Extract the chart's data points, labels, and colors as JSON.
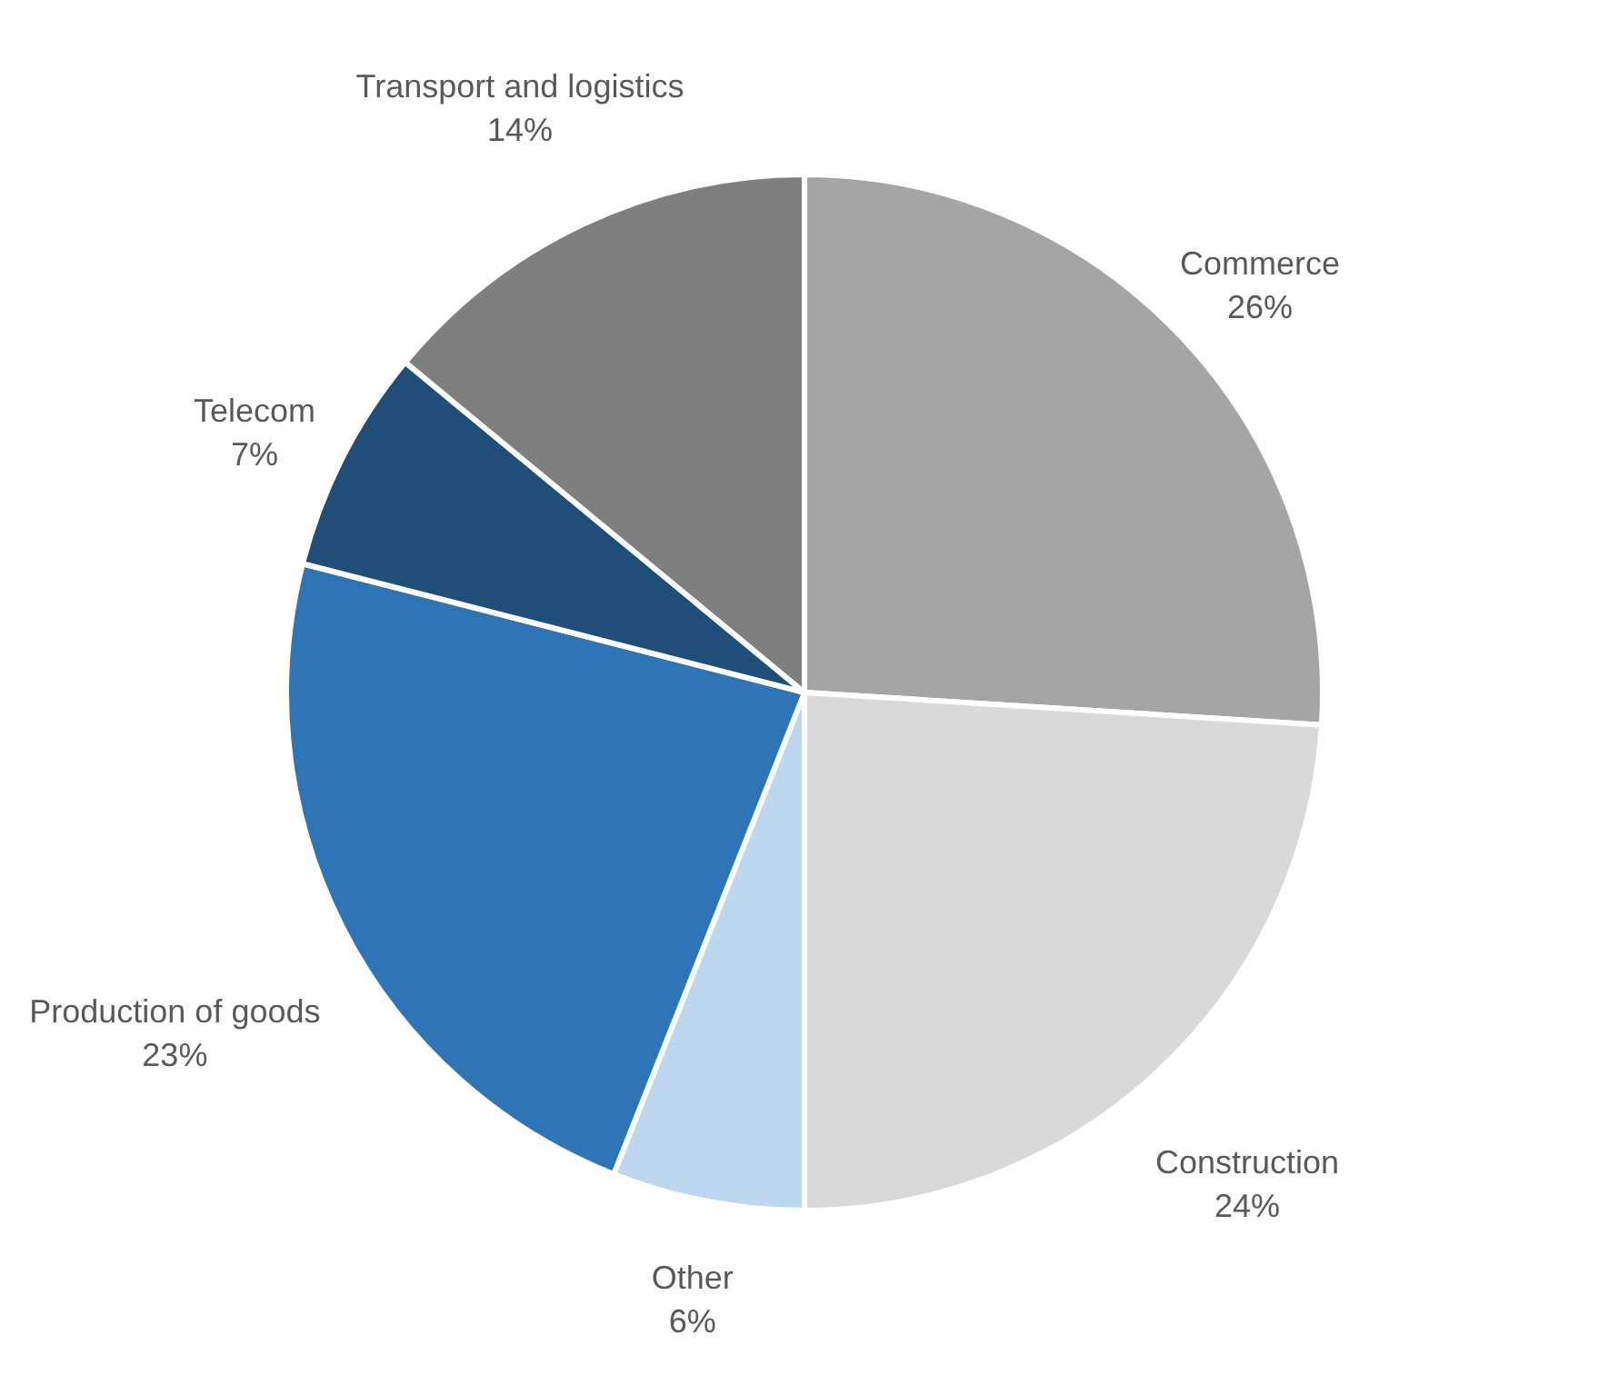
{
  "chart_data": {
    "type": "pie",
    "categories": [
      "Commerce",
      "Construction",
      "Other",
      "Production of goods",
      "Telecom",
      "Transport and logistics"
    ],
    "values": [
      26,
      24,
      6,
      23,
      7,
      14
    ],
    "value_labels": [
      "26%",
      "24%",
      "6%",
      "23%",
      "7%",
      "14%"
    ],
    "colors": [
      "#a5a5a5",
      "#d9d9d9",
      "#bdd7ee",
      "#2e75b6",
      "#1f4e79",
      "#7f7f7f"
    ]
  }
}
